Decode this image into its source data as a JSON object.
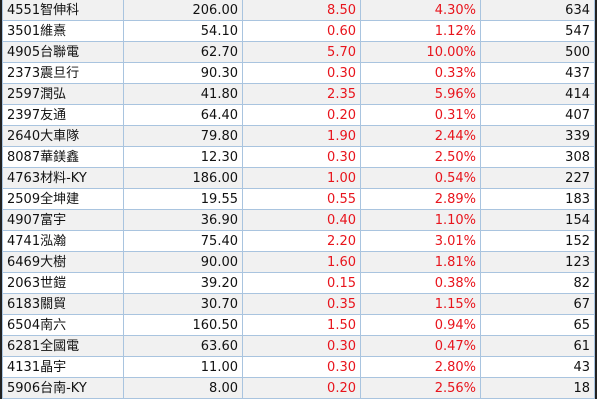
{
  "colors": {
    "up": "#e8141c",
    "grid": "#a9c4df"
  },
  "rows": [
    {
      "name": "4551智伸科",
      "price": "206.00",
      "change": "8.50",
      "pct": "4.30%",
      "volume": "634"
    },
    {
      "name": "3501維熹",
      "price": "54.10",
      "change": "0.60",
      "pct": "1.12%",
      "volume": "547"
    },
    {
      "name": "4905台聯電",
      "price": "62.70",
      "change": "5.70",
      "pct": "10.00%",
      "volume": "500"
    },
    {
      "name": "2373震旦行",
      "price": "90.30",
      "change": "0.30",
      "pct": "0.33%",
      "volume": "437"
    },
    {
      "name": "2597潤弘",
      "price": "41.80",
      "change": "2.35",
      "pct": "5.96%",
      "volume": "414"
    },
    {
      "name": "2397友通",
      "price": "64.40",
      "change": "0.20",
      "pct": "0.31%",
      "volume": "407"
    },
    {
      "name": "2640大車隊",
      "price": "79.80",
      "change": "1.90",
      "pct": "2.44%",
      "volume": "339"
    },
    {
      "name": "8087華鎂鑫",
      "price": "12.30",
      "change": "0.30",
      "pct": "2.50%",
      "volume": "308"
    },
    {
      "name": "4763材料-KY",
      "price": "186.00",
      "change": "1.00",
      "pct": "0.54%",
      "volume": "227"
    },
    {
      "name": "2509全坤建",
      "price": "19.55",
      "change": "0.55",
      "pct": "2.89%",
      "volume": "183"
    },
    {
      "name": "4907富宇",
      "price": "36.90",
      "change": "0.40",
      "pct": "1.10%",
      "volume": "154"
    },
    {
      "name": "4741泓瀚",
      "price": "75.40",
      "change": "2.20",
      "pct": "3.01%",
      "volume": "152"
    },
    {
      "name": "6469大樹",
      "price": "90.00",
      "change": "1.60",
      "pct": "1.81%",
      "volume": "123"
    },
    {
      "name": "2063世鎧",
      "price": "39.20",
      "change": "0.15",
      "pct": "0.38%",
      "volume": "82"
    },
    {
      "name": "6183關貿",
      "price": "30.70",
      "change": "0.35",
      "pct": "1.15%",
      "volume": "67"
    },
    {
      "name": "6504南六",
      "price": "160.50",
      "change": "1.50",
      "pct": "0.94%",
      "volume": "65"
    },
    {
      "name": "6281全國電",
      "price": "63.60",
      "change": "0.30",
      "pct": "0.47%",
      "volume": "61"
    },
    {
      "name": "4131晶宇",
      "price": "11.00",
      "change": "0.30",
      "pct": "2.80%",
      "volume": "43"
    },
    {
      "name": "5906台南-KY",
      "price": "8.00",
      "change": "0.20",
      "pct": "2.56%",
      "volume": "18"
    }
  ]
}
